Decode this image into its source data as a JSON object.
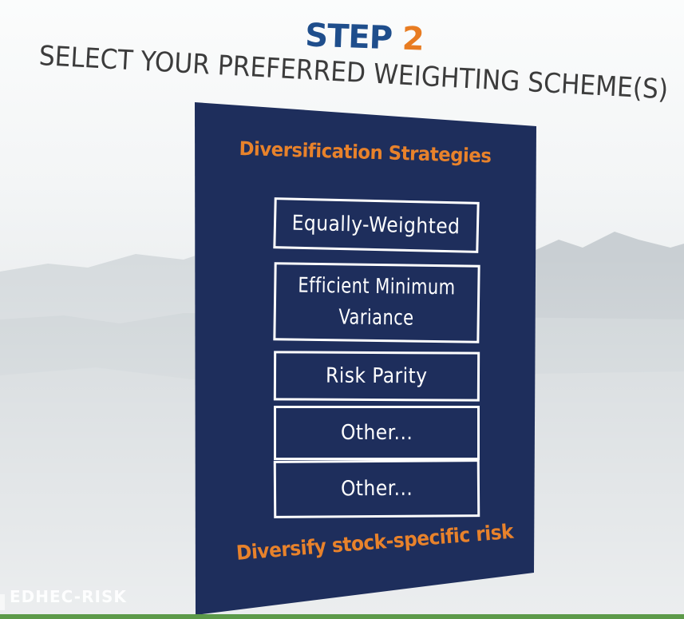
{
  "header": {
    "step_word": "STEP",
    "step_number": "2",
    "subtitle": "SELECT YOUR PREFERRED WEIGHTING SCHEME(S)"
  },
  "panel": {
    "heading": "Diversification Strategies",
    "options": [
      {
        "label": "Equally-Weighted"
      },
      {
        "label_line1": "Efficient Minimum",
        "label_line2": "Variance"
      },
      {
        "label": "Risk Parity"
      },
      {
        "label": "Other..."
      },
      {
        "label": "Other..."
      }
    ],
    "footer": "Diversify stock-specific risk"
  },
  "branding": {
    "logo_text": "EDHEC-RISK"
  },
  "colors": {
    "panel_navy": "#1e2e5c",
    "accent_orange": "#e8822b",
    "step_blue": "#1f4e8c",
    "strip_green": "#5c9a49"
  }
}
